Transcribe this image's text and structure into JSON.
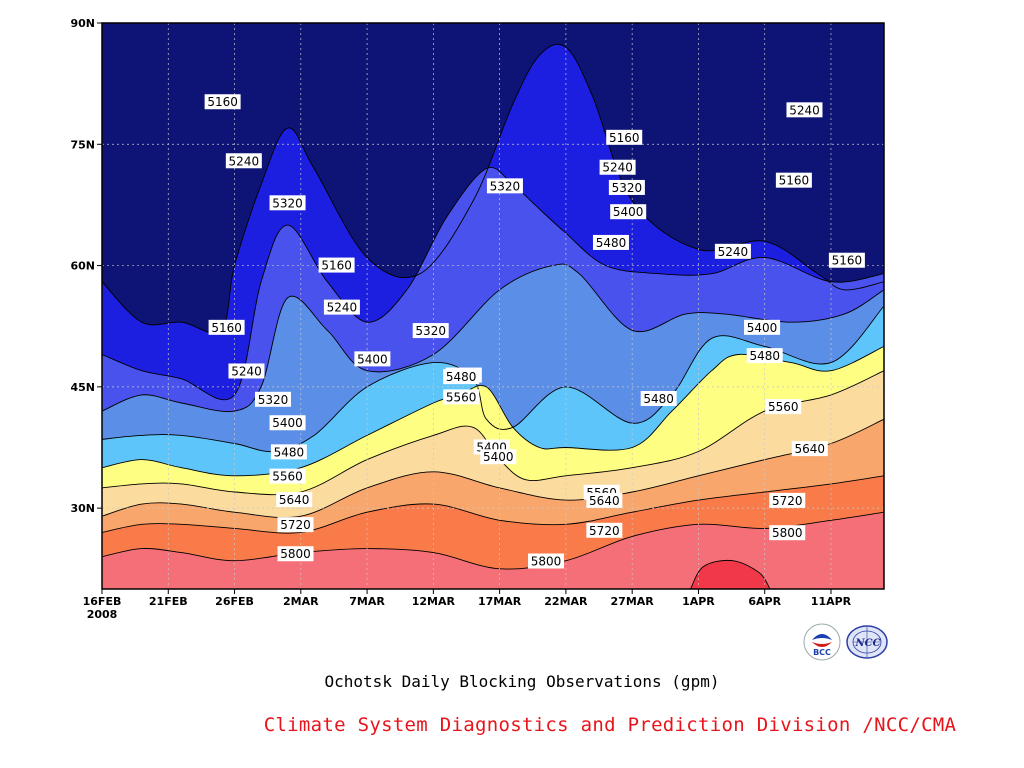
{
  "colors": {
    "lt5160": "#0d1475",
    "5160_5240": "#1c1fe0",
    "5240_5320": "#4a52ee",
    "5320_5400": "#5b8ee6",
    "5400_5480": "#5ec5fb",
    "5480_5560": "#fefe82",
    "5560_5640": "#fbdc9e",
    "5640_5720": "#f9a66c",
    "5720_5800": "#f97b4a",
    "5800_5880": "#f56f78",
    "gt5880": "#f03848",
    "footer": "#e8141c"
  },
  "chart_data": {
    "type": "contour",
    "title": "Ochotsk Daily Blocking Observations (gpm)",
    "xlabel": "",
    "ylabel": "",
    "x_tick_labels": [
      "16FEB",
      "21FEB",
      "26FEB",
      "2MAR",
      "7MAR",
      "12MAR",
      "17MAR",
      "22MAR",
      "27MAR",
      "1APR",
      "6APR",
      "11APR"
    ],
    "x_year_label": "2008",
    "y_tick_labels": [
      "30N",
      "45N",
      "60N",
      "75N",
      "90N"
    ],
    "y_ticks": [
      30,
      45,
      60,
      75,
      90
    ],
    "ylim": [
      20,
      90
    ],
    "xlim": [
      0,
      59
    ],
    "grid": true,
    "contour_levels": [
      5160,
      5240,
      5320,
      5400,
      5480,
      5560,
      5640,
      5720,
      5800,
      5880
    ],
    "contour_lines": [
      {
        "level": 5880,
        "points": [
          [
            44.4,
            20
          ],
          [
            45.4,
            22.8
          ],
          [
            47.6,
            23.5
          ],
          [
            49.6,
            22.0
          ],
          [
            50.4,
            20
          ]
        ]
      },
      {
        "level": 5800,
        "points": [
          [
            0,
            24
          ],
          [
            3,
            25
          ],
          [
            6,
            24.5
          ],
          [
            10,
            23.5
          ],
          [
            15,
            24.5
          ],
          [
            20,
            25
          ],
          [
            25,
            24.5
          ],
          [
            30,
            22.5
          ],
          [
            35,
            23.5
          ],
          [
            40,
            26.5
          ],
          [
            45,
            28
          ],
          [
            50,
            27.5
          ],
          [
            55,
            28.5
          ],
          [
            59,
            29.5
          ]
        ]
      },
      {
        "level": 5720,
        "points": [
          [
            0,
            27
          ],
          [
            3,
            28
          ],
          [
            6,
            28
          ],
          [
            10,
            27.5
          ],
          [
            15,
            27
          ],
          [
            20,
            29.5
          ],
          [
            25,
            30.5
          ],
          [
            30,
            28.5
          ],
          [
            35,
            28
          ],
          [
            40,
            29.5
          ],
          [
            45,
            31
          ],
          [
            50,
            32
          ],
          [
            55,
            33
          ],
          [
            59,
            34
          ]
        ]
      },
      {
        "level": 5640,
        "points": [
          [
            0,
            29
          ],
          [
            3,
            30.5
          ],
          [
            6,
            30.5
          ],
          [
            10,
            29.5
          ],
          [
            15,
            29
          ],
          [
            20,
            32.5
          ],
          [
            25,
            34.5
          ],
          [
            30,
            32.5
          ],
          [
            35,
            31
          ],
          [
            40,
            32
          ],
          [
            45,
            34
          ],
          [
            50,
            36
          ],
          [
            55,
            38
          ],
          [
            59,
            41
          ]
        ]
      },
      {
        "level": 5560,
        "points": [
          [
            0,
            32.5
          ],
          [
            3,
            33
          ],
          [
            6,
            33
          ],
          [
            10,
            32
          ],
          [
            15,
            32
          ],
          [
            20,
            36
          ],
          [
            25,
            39
          ],
          [
            28,
            40
          ],
          [
            30,
            36
          ],
          [
            32,
            33.5
          ],
          [
            35,
            34
          ],
          [
            40,
            35
          ],
          [
            45,
            37
          ],
          [
            50,
            42
          ],
          [
            55,
            44
          ],
          [
            59,
            47
          ]
        ]
      },
      {
        "level": 5480,
        "points": [
          [
            0,
            35
          ],
          [
            3,
            36
          ],
          [
            6,
            35
          ],
          [
            10,
            34
          ],
          [
            15,
            35
          ],
          [
            20,
            39
          ],
          [
            25,
            43
          ],
          [
            27,
            44
          ],
          [
            29,
            45
          ],
          [
            31,
            40
          ],
          [
            33,
            37.5
          ],
          [
            35,
            37.5
          ],
          [
            40,
            37.5
          ],
          [
            43,
            42
          ],
          [
            46,
            47
          ],
          [
            48,
            49
          ],
          [
            52,
            48
          ],
          [
            55,
            47
          ],
          [
            59,
            50
          ]
        ]
      },
      {
        "level": 5400,
        "points": [
          [
            0,
            38.5
          ],
          [
            3,
            39
          ],
          [
            6,
            39
          ],
          [
            10,
            38
          ],
          [
            13,
            37
          ],
          [
            16,
            39
          ],
          [
            20,
            45
          ],
          [
            25,
            48
          ],
          [
            28,
            46
          ],
          [
            29,
            41
          ],
          [
            31,
            40
          ],
          [
            35,
            45
          ],
          [
            40,
            40.5
          ],
          [
            43,
            44
          ],
          [
            46,
            51
          ],
          [
            50,
            50
          ],
          [
            55,
            48
          ],
          [
            59,
            55
          ]
        ]
      },
      {
        "level": 5320,
        "points": [
          [
            0,
            42
          ],
          [
            3,
            44
          ],
          [
            6,
            43
          ],
          [
            10,
            42
          ],
          [
            12,
            45
          ],
          [
            14,
            56
          ],
          [
            17,
            52
          ],
          [
            20,
            47
          ],
          [
            25,
            49
          ],
          [
            30,
            57
          ],
          [
            34,
            60
          ],
          [
            36,
            59
          ],
          [
            40,
            52
          ],
          [
            44,
            54
          ],
          [
            47,
            54
          ],
          [
            52,
            53
          ],
          [
            56,
            54
          ],
          [
            59,
            57
          ]
        ]
      },
      {
        "level": 5240,
        "points": [
          [
            0,
            49
          ],
          [
            3,
            47
          ],
          [
            6,
            46
          ],
          [
            10,
            44
          ],
          [
            12,
            58
          ],
          [
            14,
            65
          ],
          [
            17,
            58
          ],
          [
            20,
            53
          ],
          [
            23,
            57
          ],
          [
            26,
            66
          ],
          [
            29,
            72
          ],
          [
            31,
            70
          ],
          [
            33,
            67
          ],
          [
            35,
            64
          ],
          [
            38,
            60
          ],
          [
            42,
            59
          ],
          [
            46,
            59
          ],
          [
            50,
            61
          ],
          [
            55,
            58
          ],
          [
            59,
            59
          ]
        ]
      },
      {
        "level": 5160,
        "points": [
          [
            0,
            58
          ],
          [
            3,
            53
          ],
          [
            6,
            53
          ],
          [
            9,
            52
          ],
          [
            10,
            60
          ],
          [
            12,
            70
          ],
          [
            14,
            77
          ],
          [
            16,
            72
          ],
          [
            20,
            61
          ],
          [
            24,
            59
          ],
          [
            28,
            68
          ],
          [
            31,
            80
          ],
          [
            33,
            86
          ],
          [
            35,
            87
          ],
          [
            37,
            81
          ],
          [
            40,
            68
          ],
          [
            45,
            62
          ],
          [
            50,
            63
          ],
          [
            54,
            59
          ],
          [
            56,
            57
          ],
          [
            59,
            58
          ]
        ]
      }
    ],
    "contour_labels": [
      {
        "x": 9.1,
        "y": 80.2,
        "level": 5160
      },
      {
        "x": 9.4,
        "y": 52.3,
        "level": 5160
      },
      {
        "x": 17.7,
        "y": 60.0,
        "level": 5160
      },
      {
        "x": 39.4,
        "y": 75.8,
        "level": 5160
      },
      {
        "x": 52.2,
        "y": 70.5,
        "level": 5160
      },
      {
        "x": 56.2,
        "y": 60.6,
        "level": 5160
      },
      {
        "x": 10.7,
        "y": 72.9,
        "level": 5240
      },
      {
        "x": 10.9,
        "y": 46.9,
        "level": 5240
      },
      {
        "x": 18.1,
        "y": 54.8,
        "level": 5240
      },
      {
        "x": 38.9,
        "y": 72.1,
        "level": 5240
      },
      {
        "x": 47.6,
        "y": 61.7,
        "level": 5240
      },
      {
        "x": 53.0,
        "y": 79.2,
        "level": 5240
      },
      {
        "x": 14.0,
        "y": 67.7,
        "level": 5320
      },
      {
        "x": 12.9,
        "y": 43.4,
        "level": 5320
      },
      {
        "x": 30.4,
        "y": 69.8,
        "level": 5320
      },
      {
        "x": 24.8,
        "y": 51.9,
        "level": 5320
      },
      {
        "x": 39.6,
        "y": 69.6,
        "level": 5320
      },
      {
        "x": 14.0,
        "y": 40.5,
        "level": 5400
      },
      {
        "x": 29.4,
        "y": 37.5,
        "level": 5400
      },
      {
        "x": 29.9,
        "y": 36.3,
        "level": 5400
      },
      {
        "x": 20.4,
        "y": 48.4,
        "level": 5400
      },
      {
        "x": 39.7,
        "y": 66.6,
        "level": 5400
      },
      {
        "x": 49.8,
        "y": 52.3,
        "level": 5400
      },
      {
        "x": 38.4,
        "y": 62.8,
        "level": 5480
      },
      {
        "x": 42.0,
        "y": 43.5,
        "level": 5480
      },
      {
        "x": 50.0,
        "y": 48.8,
        "level": 5480
      },
      {
        "x": 14.1,
        "y": 36.9,
        "level": 5480
      },
      {
        "x": 27.3,
        "y": 46.4,
        "level": 5480
      },
      {
        "x": 27.1,
        "y": 46.2,
        "level": 5480
      },
      {
        "x": 14.0,
        "y": 33.9,
        "level": 5560
      },
      {
        "x": 27.1,
        "y": 43.7,
        "level": 5560
      },
      {
        "x": 37.7,
        "y": 31.9,
        "level": 5560
      },
      {
        "x": 51.4,
        "y": 42.5,
        "level": 5560
      },
      {
        "x": 14.5,
        "y": 31.0,
        "level": 5640
      },
      {
        "x": 37.9,
        "y": 30.9,
        "level": 5640
      },
      {
        "x": 53.4,
        "y": 37.3,
        "level": 5640
      },
      {
        "x": 14.6,
        "y": 27.9,
        "level": 5720
      },
      {
        "x": 37.9,
        "y": 27.2,
        "level": 5720
      },
      {
        "x": 51.7,
        "y": 30.9,
        "level": 5720
      },
      {
        "x": 14.6,
        "y": 24.3,
        "level": 5800
      },
      {
        "x": 33.5,
        "y": 23.4,
        "level": 5800
      },
      {
        "x": 51.7,
        "y": 26.9,
        "level": 5800
      }
    ]
  },
  "footer": {
    "credit": "Climate System Diagnostics and Prediction Division /NCC/CMA"
  },
  "logos": {
    "bcc_text": "BCC",
    "ncc_text": "NCC"
  }
}
